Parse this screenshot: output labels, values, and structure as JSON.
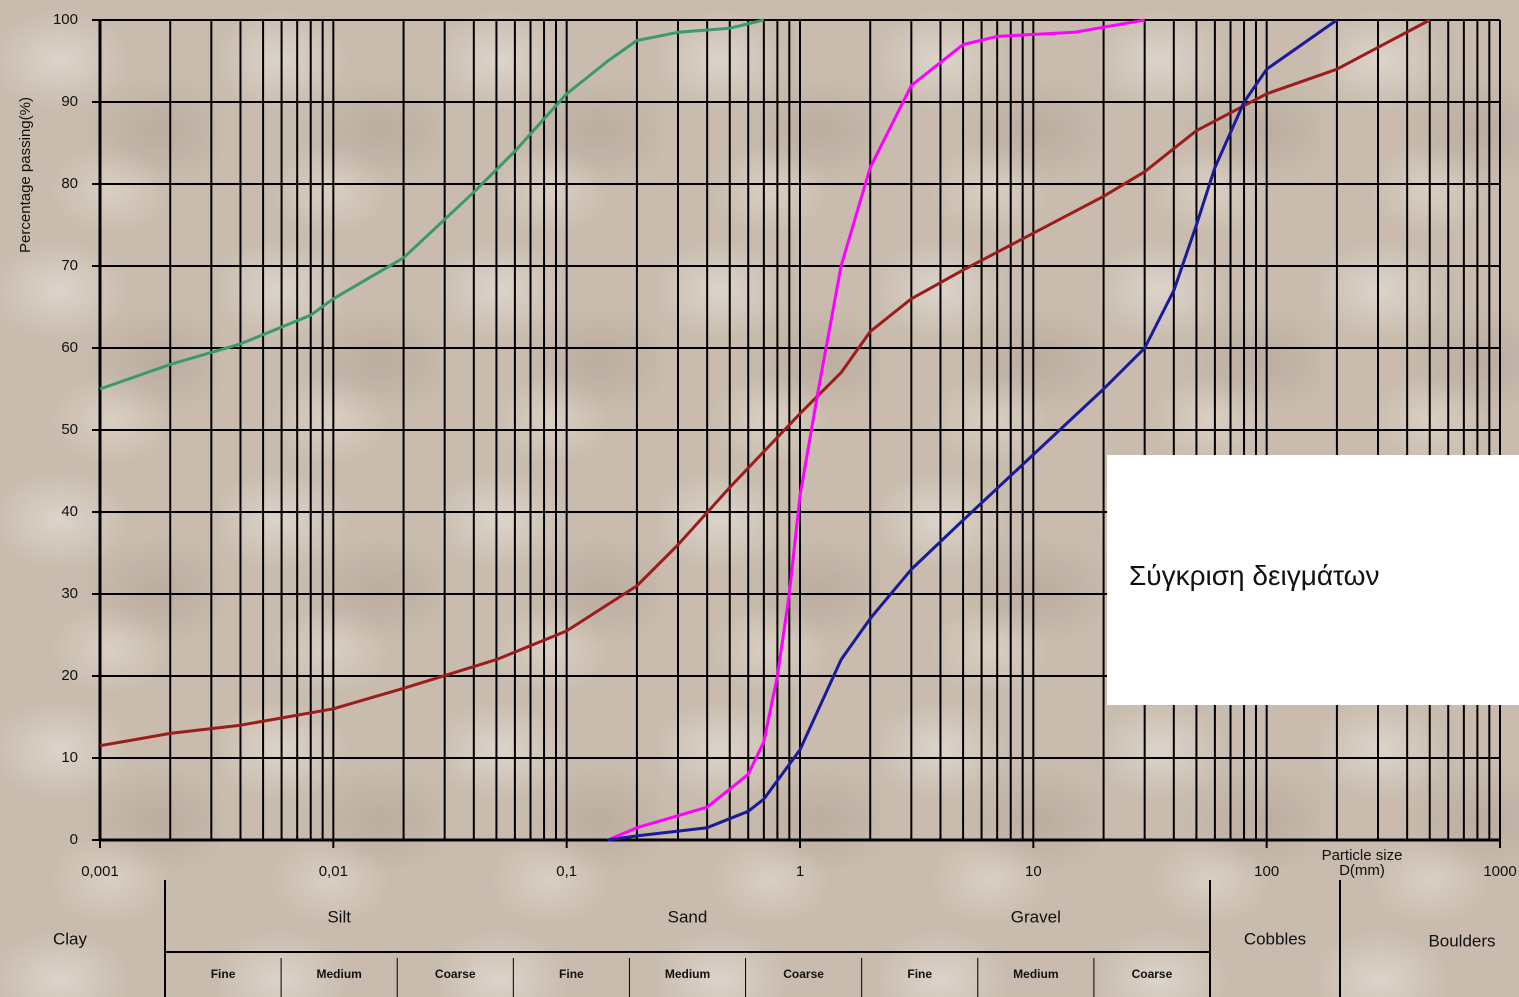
{
  "chart_data": {
    "type": "line",
    "y_label": "Percentage passing(%)",
    "x_label": "Particle size D(mm)",
    "xscale": "log",
    "xlim": [
      0.001,
      1000
    ],
    "xticks": [
      {
        "value": 0.001,
        "label": "0,001"
      },
      {
        "value": 0.01,
        "label": "0,01"
      },
      {
        "value": 0.1,
        "label": "0,1"
      },
      1,
      10,
      100,
      1000
    ],
    "ylim": [
      0,
      100
    ],
    "yticks": [
      0,
      10,
      20,
      30,
      40,
      50,
      60,
      70,
      80,
      90,
      100
    ],
    "grid": true,
    "series": [
      {
        "color": "#3a9a6a",
        "x": [
          0.001,
          0.002,
          0.004,
          0.008,
          0.01,
          0.02,
          0.04,
          0.06,
          0.1,
          0.15,
          0.2,
          0.3,
          0.5,
          0.7
        ],
        "values": [
          55,
          58,
          60.5,
          64,
          66,
          71,
          79,
          84,
          91,
          95,
          97.5,
          98.5,
          99,
          100
        ]
      },
      {
        "color": "#9b1c1c",
        "x": [
          0.001,
          0.002,
          0.004,
          0.01,
          0.02,
          0.05,
          0.1,
          0.2,
          0.3,
          0.5,
          1,
          1.5,
          2,
          3,
          5,
          10,
          20,
          30,
          50,
          100,
          200,
          500
        ],
        "values": [
          11.5,
          13,
          14,
          16,
          18.5,
          22,
          25.5,
          31,
          36,
          43,
          52,
          57,
          62,
          66,
          69.5,
          74,
          78.5,
          81.5,
          86.5,
          91,
          94,
          100
        ]
      },
      {
        "color": "#ff00ff",
        "x": [
          0.15,
          0.2,
          0.4,
          0.6,
          0.7,
          0.8,
          0.9,
          1,
          1.2,
          1.5,
          2,
          3,
          5,
          7,
          15,
          30
        ],
        "values": [
          0,
          1.5,
          4,
          8,
          12,
          20,
          30,
          42,
          55,
          70,
          82,
          92,
          97,
          98,
          98.5,
          100
        ]
      },
      {
        "color": "#1a1a9a",
        "x": [
          0.15,
          0.2,
          0.4,
          0.6,
          0.7,
          1,
          1.5,
          2,
          3,
          5,
          10,
          20,
          30,
          40,
          50,
          60,
          80,
          100,
          200
        ],
        "values": [
          0,
          0.5,
          1.5,
          3.5,
          5,
          11,
          22,
          27,
          33,
          39,
          47,
          55,
          60,
          67,
          75,
          82,
          90,
          94,
          100
        ]
      }
    ],
    "classification": [
      {
        "name": "Clay"
      },
      {
        "name": "Silt",
        "subdivisions": [
          "Fine",
          "Medium",
          "Coarse"
        ]
      },
      {
        "name": "Sand",
        "subdivisions": [
          "Fine",
          "Medium",
          "Coarse"
        ]
      },
      {
        "name": "Gravel",
        "subdivisions": [
          "Fine",
          "Medium",
          "Coarse"
        ]
      },
      {
        "name": "Cobbles"
      },
      {
        "name": "Boulders"
      }
    ]
  },
  "overlay": {
    "text": "Σύγκριση δειγμάτων"
  }
}
